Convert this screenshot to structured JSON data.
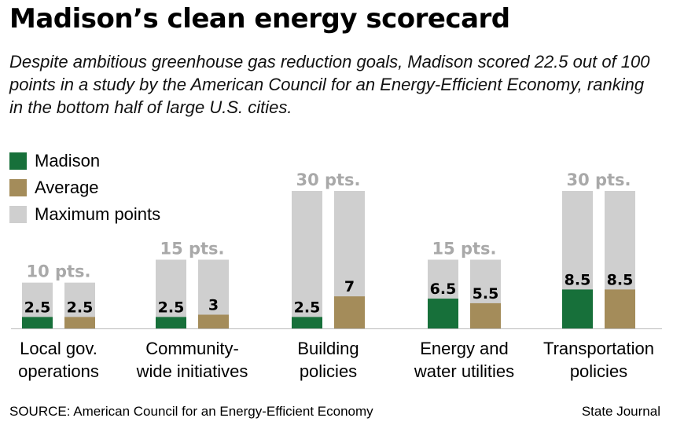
{
  "header": {
    "title": "Madison’s clean energy scorecard",
    "subtitle": "Despite ambitious greenhouse gas reduction goals, Madison scored 22.5 out of 100 points in a study by the American Council for an Energy-Efficient Economy, ranking in the bottom half of large U.S. cities."
  },
  "legend": {
    "madison": "Madison",
    "average": "Average",
    "maximum": "Maximum points"
  },
  "footer": {
    "source": "SOURCE: American Council for an Energy-Efficient Economy",
    "credit": "State Journal"
  },
  "colors": {
    "madison": "#17703a",
    "average": "#a48c5a",
    "maximum": "#cfcfcf",
    "max_label": "#a9a9a9"
  },
  "chart_data": {
    "type": "bar",
    "title": "Madison’s clean energy scorecard",
    "categories": [
      "Local gov. operations",
      "Community-wide initiatives",
      "Building policies",
      "Energy and water utilities",
      "Transportation policies"
    ],
    "category_lines": [
      [
        "Local gov.",
        "operations"
      ],
      [
        "Community-",
        "wide initiatives"
      ],
      [
        "Building",
        "policies"
      ],
      [
        "Energy and",
        "water utilities"
      ],
      [
        "Transportation",
        "policies"
      ]
    ],
    "max_labels": [
      "10 pts.",
      "15 pts.",
      "30 pts.",
      "15 pts.",
      "30 pts."
    ],
    "series": [
      {
        "name": "Maximum points",
        "values": [
          10,
          15,
          30,
          15,
          30
        ]
      },
      {
        "name": "Madison",
        "values": [
          2.5,
          2.5,
          2.5,
          6.5,
          8.5
        ]
      },
      {
        "name": "Average",
        "values": [
          2.5,
          3,
          7,
          5.5,
          8.5
        ]
      }
    ],
    "value_labels": {
      "madison": [
        "2.5",
        "2.5",
        "2.5",
        "6.5",
        "8.5"
      ],
      "average": [
        "2.5",
        "3",
        "7",
        "5.5",
        "8.5"
      ]
    },
    "ylim": [
      0,
      30
    ],
    "grid": false,
    "legend_position": "top-left"
  }
}
